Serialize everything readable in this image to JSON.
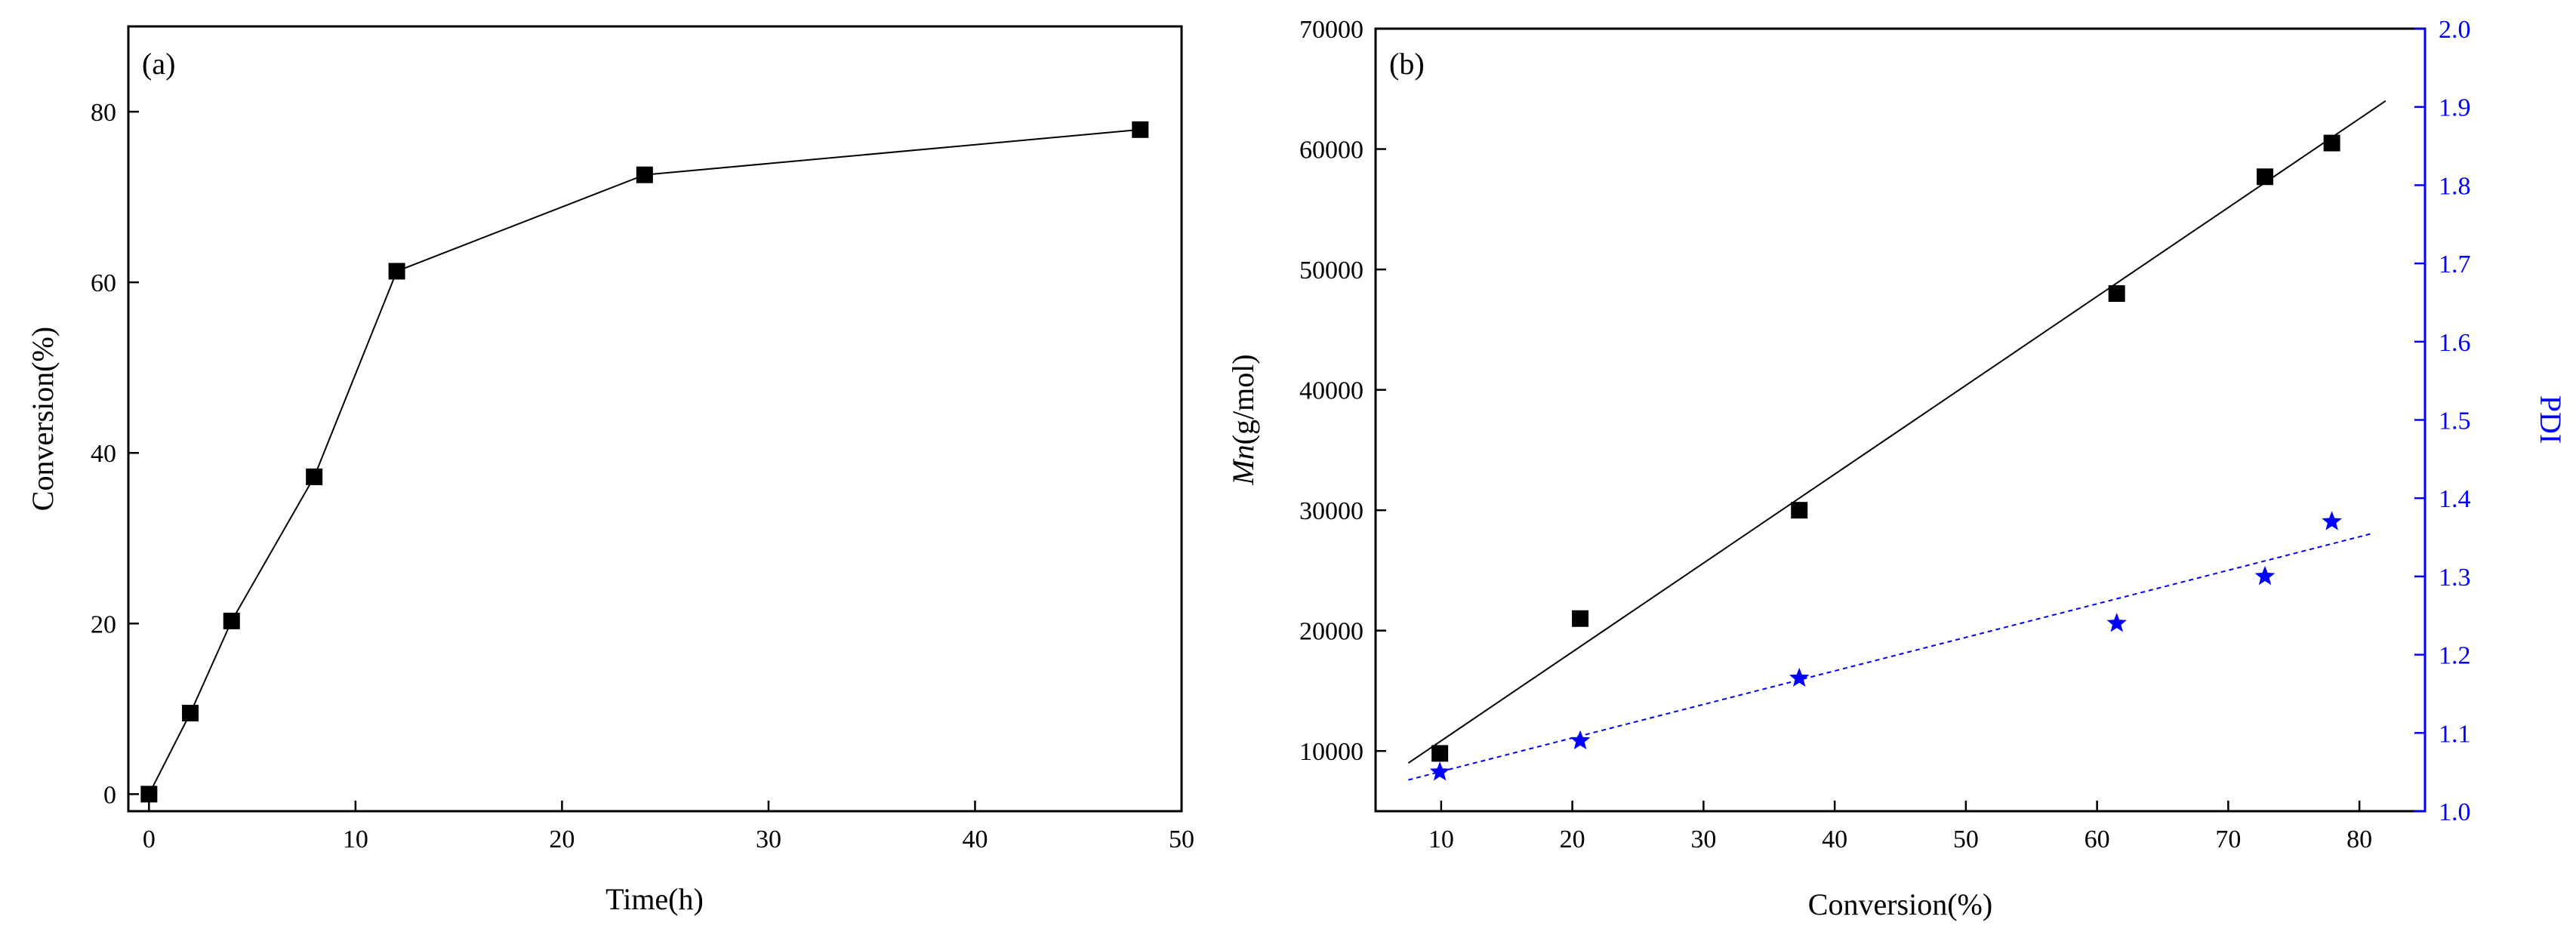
{
  "chart_data": [
    {
      "type": "line",
      "panel_label": "(a)",
      "title": "",
      "xlabel": "Time(h)",
      "ylabel": "Conversion(%)",
      "xlim": [
        -1,
        50
      ],
      "ylim": [
        -2,
        90
      ],
      "xticks": [
        0,
        10,
        20,
        30,
        40,
        50
      ],
      "yticks": [
        0,
        20,
        40,
        60,
        80
      ],
      "grid": false,
      "series": [
        {
          "name": "Conversion",
          "marker": "square",
          "color": "#000000",
          "x": [
            0,
            2,
            4,
            8,
            12,
            24,
            48
          ],
          "y": [
            0,
            9.5,
            20.3,
            37.2,
            61.3,
            72.6,
            77.9
          ]
        }
      ]
    },
    {
      "type": "scatter",
      "panel_label": "(b)",
      "title": "",
      "xlabel": "Conversion(%)",
      "ylabel_italic": "Mn",
      "ylabel_rest": "(g/mol)",
      "y2label": "PDI",
      "xlim": [
        5,
        85
      ],
      "ylim": [
        5000,
        70000
      ],
      "y2lim": [
        1.0,
        2.0
      ],
      "xticks": [
        10,
        20,
        30,
        40,
        50,
        60,
        70,
        80
      ],
      "yticks": [
        10000,
        20000,
        30000,
        40000,
        50000,
        60000,
        70000
      ],
      "y2ticks": [
        "1.0",
        "1.1",
        "1.2",
        "1.3",
        "1.4",
        "1.5",
        "1.6",
        "1.7",
        "1.8",
        "1.9",
        "2.0"
      ],
      "grid": false,
      "series": [
        {
          "name": "Mn",
          "axis": "left",
          "marker": "square",
          "color": "#000000",
          "x": [
            9.9,
            20.6,
            37.3,
            61.5,
            72.8,
            77.9
          ],
          "y": [
            9800,
            21000,
            30000,
            48000,
            57700,
            60500
          ],
          "fit": {
            "x": [
              7.5,
              82
            ],
            "y": [
              9000,
              64000
            ],
            "style": "solid"
          }
        },
        {
          "name": "PDI",
          "axis": "right",
          "marker": "star",
          "color": "#0000ff",
          "x": [
            9.9,
            20.6,
            37.3,
            61.5,
            72.8,
            77.9
          ],
          "y": [
            1.05,
            1.09,
            1.17,
            1.24,
            1.3,
            1.37
          ],
          "fit": {
            "x": [
              7.5,
              81
            ],
            "y": [
              1.04,
              1.355
            ],
            "style": "dashed"
          }
        }
      ]
    }
  ]
}
